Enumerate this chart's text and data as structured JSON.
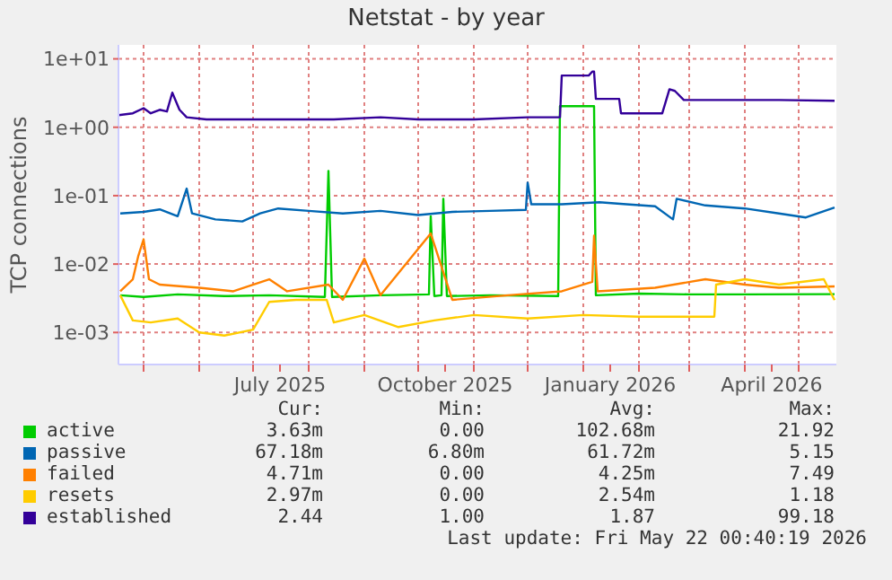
{
  "chart_data": {
    "type": "line",
    "title": "Netstat - by year",
    "ylabel": "TCP connections",
    "log": "y",
    "grid": true,
    "legend": "bottom",
    "marker": "none",
    "line_style": "solid",
    "xlim": [
      "2025-04-17",
      "2026-05-22"
    ],
    "xticks": [
      {
        "value": "2025-05-01",
        "label": null
      },
      {
        "value": "2025-06-01",
        "label": null
      },
      {
        "value": "2025-07-01",
        "label": null
      },
      {
        "value": "2025-07-16",
        "label": "July 2025"
      },
      {
        "value": "2025-08-01",
        "label": null
      },
      {
        "value": "2025-09-01",
        "label": null
      },
      {
        "value": "2025-10-01",
        "label": null
      },
      {
        "value": "2025-10-16",
        "label": "October 2025"
      },
      {
        "value": "2025-11-01",
        "label": null
      },
      {
        "value": "2025-12-01",
        "label": null
      },
      {
        "value": "2026-01-01",
        "label": null
      },
      {
        "value": "2026-01-16",
        "label": "January 2026"
      },
      {
        "value": "2026-02-01",
        "label": null
      },
      {
        "value": "2026-03-01",
        "label": null
      },
      {
        "value": "2026-04-01",
        "label": null
      },
      {
        "value": "2026-04-16",
        "label": "April 2026"
      },
      {
        "value": "2026-05-01",
        "label": null
      }
    ],
    "ylim": [
      0.00034,
      16
    ],
    "yticks": [
      {
        "value": 0.001,
        "label": "1e-03"
      },
      {
        "value": 0.01,
        "label": "1e-02"
      },
      {
        "value": 0.1,
        "label": "1e-01"
      },
      {
        "value": 1,
        "label": "1e+00"
      },
      {
        "value": 10,
        "label": "1e+01"
      }
    ],
    "annotations": [
      "Cur:",
      "Min:",
      "Avg:",
      "Max:",
      "3.63m",
      "0.00",
      "102.68m",
      "21.92",
      "67.18m",
      "6.80m",
      "61.72m",
      "5.15",
      "4.71m",
      "0.00",
      "4.25m",
      "7.49",
      "2.97m",
      "0.00",
      "2.54m",
      "1.18",
      "2.44",
      "1.00",
      "1.87",
      "99.18",
      "Last update: Fri May 22 00:40:19 2026"
    ],
    "series": [
      {
        "name": "active",
        "color": "#00cc00",
        "x": [
          "2025-04-18",
          "2025-05-01",
          "2025-05-20",
          "2025-06-15",
          "2025-07-10",
          "2025-08-10",
          "2025-08-12",
          "2025-08-14",
          "2025-09-10",
          "2025-10-07",
          "2025-10-08",
          "2025-10-10",
          "2025-10-14",
          "2025-10-15",
          "2025-10-17",
          "2025-11-10",
          "2025-12-18",
          "2025-12-19",
          "2026-01-07",
          "2026-01-08",
          "2026-02-01",
          "2026-03-01",
          "2026-04-01",
          "2026-05-21"
        ],
        "values": [
          0.0035,
          0.0033,
          0.0036,
          0.0034,
          0.0035,
          0.0033,
          0.23,
          0.0033,
          0.0035,
          0.0036,
          0.05,
          0.0034,
          0.0035,
          0.09,
          0.0034,
          0.0035,
          0.0034,
          2.03,
          2.03,
          0.0035,
          0.0037,
          0.0036,
          0.0036,
          0.00363
        ]
      },
      {
        "name": "passive",
        "color": "#0066b3",
        "x": [
          "2025-04-18",
          "2025-05-01",
          "2025-05-10",
          "2025-05-20",
          "2025-05-25",
          "2025-05-28",
          "2025-06-10",
          "2025-06-25",
          "2025-07-05",
          "2025-07-15",
          "2025-08-01",
          "2025-08-20",
          "2025-09-10",
          "2025-10-01",
          "2025-10-20",
          "2025-11-10",
          "2025-11-30",
          "2025-12-01",
          "2025-12-03",
          "2025-12-20",
          "2026-01-10",
          "2026-01-25",
          "2026-02-10",
          "2026-02-20",
          "2026-02-22",
          "2026-03-10",
          "2026-04-01",
          "2026-04-20",
          "2026-05-05",
          "2026-05-21"
        ],
        "values": [
          0.055,
          0.058,
          0.063,
          0.05,
          0.127,
          0.055,
          0.045,
          0.042,
          0.055,
          0.065,
          0.06,
          0.055,
          0.06,
          0.052,
          0.058,
          0.06,
          0.062,
          0.155,
          0.075,
          0.075,
          0.08,
          0.075,
          0.07,
          0.045,
          0.09,
          0.072,
          0.065,
          0.055,
          0.048,
          0.067
        ]
      },
      {
        "name": "failed",
        "color": "#ff8000",
        "x": [
          "2025-04-18",
          "2025-04-25",
          "2025-04-28",
          "2025-05-01",
          "2025-05-04",
          "2025-05-10",
          "2025-06-01",
          "2025-06-20",
          "2025-07-10",
          "2025-07-20",
          "2025-08-12",
          "2025-08-20",
          "2025-09-01",
          "2025-09-10",
          "2025-10-08",
          "2025-10-20",
          "2025-11-20",
          "2025-12-20",
          "2026-01-06",
          "2026-01-07",
          "2026-01-09",
          "2026-02-10",
          "2026-03-10",
          "2026-04-01",
          "2026-04-20",
          "2026-05-21"
        ],
        "values": [
          0.004,
          0.006,
          0.013,
          0.023,
          0.006,
          0.005,
          0.0045,
          0.004,
          0.006,
          0.004,
          0.005,
          0.003,
          0.012,
          0.0035,
          0.028,
          0.003,
          0.0035,
          0.004,
          0.0055,
          0.026,
          0.004,
          0.0045,
          0.006,
          0.005,
          0.0045,
          0.00471
        ]
      },
      {
        "name": "resets",
        "color": "#ffcc00",
        "x": [
          "2025-04-18",
          "2025-04-25",
          "2025-05-05",
          "2025-05-20",
          "2025-06-01",
          "2025-06-15",
          "2025-07-01",
          "2025-07-10",
          "2025-07-25",
          "2025-08-11",
          "2025-08-15",
          "2025-09-01",
          "2025-09-20",
          "2025-10-10",
          "2025-11-01",
          "2025-12-01",
          "2026-01-01",
          "2026-02-01",
          "2026-03-15",
          "2026-03-16",
          "2026-04-01",
          "2026-04-20",
          "2026-05-15",
          "2026-05-21"
        ],
        "values": [
          0.0035,
          0.0015,
          0.0014,
          0.0016,
          0.001,
          0.0009,
          0.0011,
          0.0028,
          0.003,
          0.003,
          0.0014,
          0.0018,
          0.0012,
          0.0015,
          0.0018,
          0.0016,
          0.0018,
          0.0017,
          0.0017,
          0.005,
          0.006,
          0.005,
          0.006,
          0.00297
        ]
      },
      {
        "name": "established",
        "color": "#330099",
        "x": [
          "2025-04-17",
          "2025-04-25",
          "2025-05-01",
          "2025-05-05",
          "2025-05-10",
          "2025-05-14",
          "2025-05-17",
          "2025-05-21",
          "2025-05-25",
          "2025-06-05",
          "2025-07-01",
          "2025-08-15",
          "2025-09-10",
          "2025-10-01",
          "2025-11-01",
          "2025-12-01",
          "2025-12-19",
          "2025-12-20",
          "2026-01-04",
          "2026-01-06",
          "2026-01-07",
          "2026-01-08",
          "2026-01-21",
          "2026-01-22",
          "2026-02-14",
          "2026-02-18",
          "2026-02-21",
          "2026-02-26",
          "2026-03-15",
          "2026-04-20",
          "2026-05-21"
        ],
        "values": [
          1.5,
          1.6,
          1.9,
          1.6,
          1.8,
          1.7,
          3.2,
          1.8,
          1.4,
          1.3,
          1.3,
          1.3,
          1.4,
          1.3,
          1.3,
          1.4,
          1.4,
          5.7,
          5.7,
          6.5,
          6.5,
          2.6,
          2.6,
          1.6,
          1.6,
          3.6,
          3.4,
          2.5,
          2.5,
          2.5,
          2.44
        ]
      }
    ]
  }
}
